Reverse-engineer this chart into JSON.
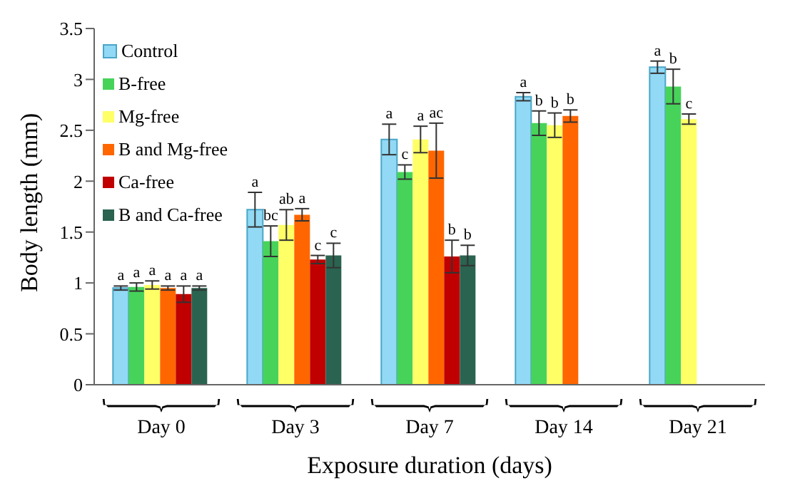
{
  "chart_data": {
    "type": "bar",
    "xlabel": "Exposure duration (days)",
    "ylabel": "Body length (mm)",
    "categories": [
      "Day 0",
      "Day 3",
      "Day 7",
      "Day 14",
      "Day 21"
    ],
    "series": [
      {
        "name": "Control",
        "color": "#92d9f5",
        "values": [
          0.95,
          1.72,
          2.41,
          2.83,
          3.12
        ],
        "errors": [
          0.02,
          0.17,
          0.15,
          0.04,
          0.06
        ],
        "value_labels": [
          "a",
          "a",
          "a",
          "a",
          "a"
        ]
      },
      {
        "name": "B-free",
        "color": "#47d35a",
        "values": [
          0.96,
          1.41,
          2.09,
          2.57,
          2.93
        ],
        "errors": [
          0.04,
          0.15,
          0.07,
          0.12,
          0.17
        ],
        "value_labels": [
          "a",
          "bc",
          "c",
          "b",
          "b"
        ]
      },
      {
        "name": "Mg-free",
        "color": "#ffff66",
        "values": [
          0.98,
          1.57,
          2.41,
          2.55,
          2.61
        ],
        "errors": [
          0.04,
          0.15,
          0.13,
          0.12,
          0.05
        ],
        "value_labels": [
          "a",
          "ab",
          "a",
          "b",
          "c"
        ]
      },
      {
        "name": "B and Mg-free",
        "color": "#ff6600",
        "values": [
          0.95,
          1.67,
          2.3,
          2.64,
          null
        ],
        "errors": [
          0.02,
          0.06,
          0.27,
          0.06,
          null
        ],
        "value_labels": [
          "a",
          "a",
          "ac",
          "b",
          null
        ]
      },
      {
        "name": "Ca-free",
        "color": "#c00000",
        "values": [
          0.89,
          1.23,
          1.26,
          null,
          null
        ],
        "errors": [
          0.08,
          0.04,
          0.16,
          null,
          null
        ],
        "value_labels": [
          "a",
          "c",
          "b",
          null,
          null
        ]
      },
      {
        "name": "B and Ca-free",
        "color": "#2a6350",
        "values": [
          0.95,
          1.27,
          1.27,
          null,
          null
        ],
        "errors": [
          0.02,
          0.12,
          0.1,
          null,
          null
        ],
        "value_labels": [
          "a",
          "c",
          "b",
          null,
          null
        ]
      }
    ],
    "ylim": [
      0,
      3.5
    ],
    "yticks": [
      0,
      0.5,
      1,
      1.5,
      2,
      2.5,
      3,
      3.5
    ],
    "grid": false,
    "legend": "top left"
  }
}
